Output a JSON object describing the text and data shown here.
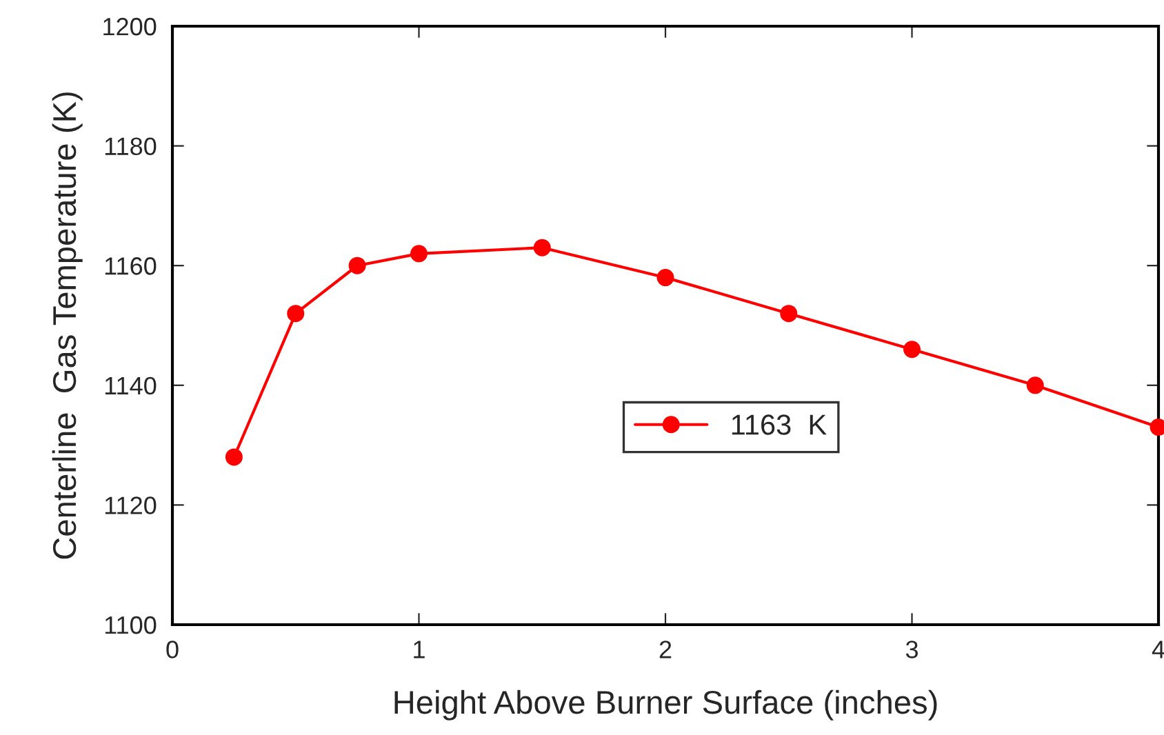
{
  "chart_data": {
    "type": "line",
    "xlabel": "Height Above Burner Surface (inches)",
    "ylabel": "Centerline  Gas Temperature (K)",
    "x": [
      0.25,
      0.5,
      0.75,
      1,
      1.5,
      2,
      2.5,
      3,
      3.5,
      4
    ],
    "series": [
      {
        "name": "1163  K",
        "color": "#ff0000",
        "values": [
          1128,
          1152,
          1160,
          1162,
          1163,
          1158,
          1152,
          1146,
          1140,
          1133
        ]
      }
    ],
    "xlim": [
      0,
      4
    ],
    "xticks": [
      0,
      1,
      2,
      3,
      4
    ],
    "ylim": [
      1100,
      1200
    ],
    "yticks": [
      1100,
      1120,
      1140,
      1160,
      1180,
      1200
    ],
    "grid": false,
    "legend": "center right",
    "marker": "circle",
    "line_style": "solid"
  }
}
